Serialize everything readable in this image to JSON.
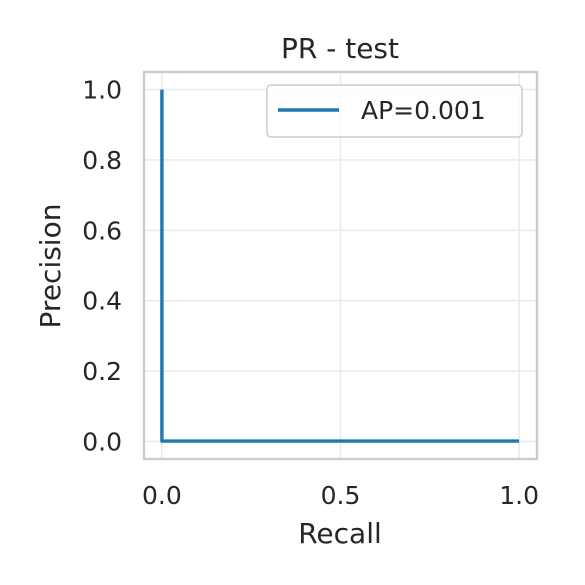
{
  "chart_data": {
    "type": "line",
    "title": "PR - test",
    "xlabel": "Recall",
    "ylabel": "Precision",
    "xlim": [
      -0.05,
      1.05
    ],
    "ylim": [
      -0.05,
      1.05
    ],
    "xticks": [
      0.0,
      0.5,
      1.0
    ],
    "xtick_labels": [
      "0.0",
      "0.5",
      "1.0"
    ],
    "yticks": [
      0.0,
      0.2,
      0.4,
      0.6,
      0.8,
      1.0
    ],
    "ytick_labels": [
      "0.0",
      "0.2",
      "0.4",
      "0.6",
      "0.8",
      "1.0"
    ],
    "grid": true,
    "legend_position": "upper right",
    "series": [
      {
        "name": "AP=0.001",
        "color": "#1f77b4",
        "x": [
          0.0,
          0.0,
          1.0
        ],
        "y": [
          1.0,
          0.001,
          0.001
        ]
      }
    ]
  }
}
